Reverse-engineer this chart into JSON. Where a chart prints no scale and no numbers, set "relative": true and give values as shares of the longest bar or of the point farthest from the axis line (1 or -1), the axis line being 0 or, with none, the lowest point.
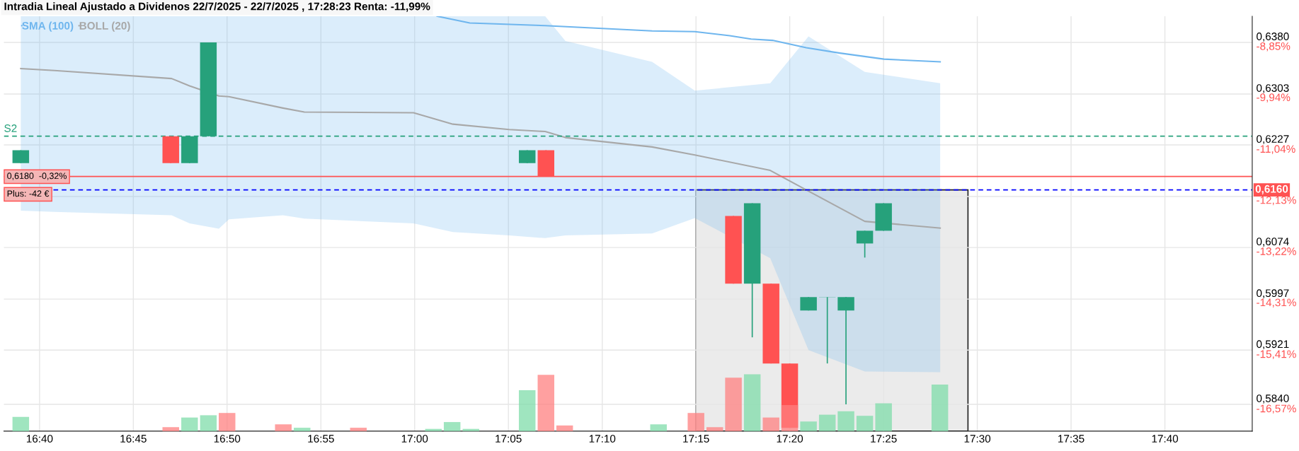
{
  "chart_data": [
    {
      "type": "candlestick",
      "title": "Intradia Lineal Ajustado a Dividenos 22/7/2025 - 22/7/2025 , 17:28:23 Renta: -11,99%",
      "x": [
        16.65,
        16.7833,
        16.8,
        16.8167,
        17.1,
        17.1167,
        17.2833,
        17.3,
        17.3167,
        17.3333,
        17.35,
        17.3667,
        17.3833,
        17.4,
        17.4167
      ],
      "ohlc": [
        [
          0.62,
          0.6219,
          0.62,
          0.6219
        ],
        [
          0.624,
          0.624,
          0.62,
          0.62
        ],
        [
          0.62,
          0.624,
          0.62,
          0.624
        ],
        [
          0.624,
          0.638,
          0.624,
          0.638
        ],
        [
          0.62,
          0.6219,
          0.62,
          0.6219
        ],
        [
          0.6219,
          0.6219,
          0.618,
          0.618
        ],
        [
          0.6121,
          0.6121,
          0.602,
          0.602
        ],
        [
          0.602,
          0.614,
          0.594,
          0.614
        ],
        [
          0.602,
          0.602,
          0.5901,
          0.5901
        ],
        [
          0.5901,
          0.5901,
          0.5805,
          0.5805
        ],
        [
          0.598,
          0.6,
          0.598,
          0.6
        ],
        [
          0.6,
          0.6,
          0.5901,
          0.6
        ],
        [
          0.598,
          0.6,
          0.584,
          0.6
        ],
        [
          0.608,
          0.6099,
          0.6059,
          0.6099
        ],
        [
          0.6099,
          0.614,
          0.6099,
          0.614
        ]
      ],
      "colors": [
        "#26a17b",
        "#ff5252",
        "#26a17b",
        "#26a17b",
        "#26a17b",
        "#ff5252",
        "#ff5252",
        "#26a17b",
        "#ff5252",
        "#ff5252",
        "#26a17b",
        "#26a17b",
        "#26a17b",
        "#26a17b",
        "#26a17b"
      ],
      "series": [
        {
          "type": "line",
          "name": "SMA (100)",
          "color": "#6fb6ee",
          "x": [
            17.02,
            17.049,
            17.116,
            17.211,
            17.249,
            17.28,
            17.299,
            17.318,
            17.348,
            17.378,
            17.417,
            17.467
          ],
          "values": [
            0.6419,
            0.6409,
            0.6405,
            0.6397,
            0.6396,
            0.639,
            0.6385,
            0.6383,
            0.6372,
            0.6364,
            0.6355,
            0.6351
          ]
        },
        {
          "type": "line",
          "name": "BOLL (20)",
          "color": "#a8a8a8",
          "x": [
            16.65,
            16.68,
            16.784,
            16.8,
            16.826,
            16.835,
            16.883,
            16.902,
            16.999,
            17.034,
            17.084,
            17.116,
            17.134,
            17.211,
            17.249,
            17.316,
            17.35,
            17.4,
            17.467
          ],
          "values": [
            0.6341,
            0.6338,
            0.6326,
            0.6315,
            0.63,
            0.6299,
            0.6282,
            0.6276,
            0.6275,
            0.6258,
            0.625,
            0.6247,
            0.6238,
            0.6224,
            0.6212,
            0.6189,
            0.6158,
            0.6113,
            0.6103
          ],
          "upper": [
            0.6419,
            0.6419,
            0.6419,
            0.6419,
            0.6419,
            0.6419,
            0.6419,
            0.6419,
            0.6419,
            0.6419,
            0.6419,
            0.6419,
            0.6382,
            0.6351,
            0.6308,
            0.6319,
            0.6389,
            0.6336,
            0.6319
          ],
          "lower": [
            0.6129,
            0.6127,
            0.6122,
            0.611,
            0.6102,
            0.6116,
            0.6122,
            0.6117,
            0.611,
            0.6097,
            0.6092,
            0.6088,
            0.6092,
            0.6095,
            0.6118,
            0.6058,
            0.5921,
            0.5889,
            0.5888
          ]
        }
      ],
      "xlim": [
        16.635,
        17.7443
      ],
      "xticks": [
        {
          "value": 16.6667,
          "label": "16:40"
        },
        {
          "value": 16.75,
          "label": "16:45"
        },
        {
          "value": 16.8333,
          "label": "16:50"
        },
        {
          "value": 16.9167,
          "label": "16:55"
        },
        {
          "value": 17.0,
          "label": "17:00"
        },
        {
          "value": 17.0833,
          "label": "17:05"
        },
        {
          "value": 17.1667,
          "label": "17:10"
        },
        {
          "value": 17.25,
          "label": "17:15"
        },
        {
          "value": 17.3333,
          "label": "17:20"
        },
        {
          "value": 17.4167,
          "label": "17:25"
        },
        {
          "value": 17.5,
          "label": "17:30"
        },
        {
          "value": 17.5833,
          "label": "17:35"
        },
        {
          "value": 17.6667,
          "label": "17:40"
        }
      ],
      "ylim": [
        0.58,
        0.6419
      ],
      "yticks": [
        {
          "value": 0.638,
          "label": "0,6380"
        },
        {
          "value": 0.6303,
          "label": "0,6303"
        },
        {
          "value": 0.6227,
          "label": "0,6227"
        },
        {
          "value": 0.615,
          "label": null
        },
        {
          "value": 0.6074,
          "label": "0,6074"
        },
        {
          "value": 0.5997,
          "label": "0,5997"
        },
        {
          "value": 0.5921,
          "label": "0,5921"
        },
        {
          "value": 0.584,
          "label": "0,5840"
        }
      ],
      "y2lim": [
        -17.14,
        -8.3
      ],
      "y2ticks": [
        {
          "value": -8.85,
          "label": "-8,85%"
        },
        {
          "value": -9.94,
          "label": "-9,94%"
        },
        {
          "value": -11.04,
          "label": "-11,04%"
        },
        {
          "value": -12.13,
          "label": "-12,13%"
        },
        {
          "value": -13.22,
          "label": "-13,22%"
        },
        {
          "value": -14.31,
          "label": "-14,31%"
        },
        {
          "value": -15.41,
          "label": "-15,41%"
        },
        {
          "value": -16.57,
          "label": "-16,57%"
        }
      ],
      "ref_lines": [
        {
          "axis": "y",
          "value": 0.624,
          "label": "S2",
          "color": "#26a17b",
          "line_style": "dashed"
        },
        {
          "axis": "y",
          "value": 0.618,
          "label": "0,6180  -0,32%",
          "color": "#ff5252",
          "line_style": "solid"
        },
        {
          "axis": "y",
          "value": 0.616,
          "label": "0,6160",
          "color": "#0000ff",
          "line_style": "dashed"
        }
      ],
      "bands": [
        {
          "axis": "x",
          "from": 17.25,
          "to": 17.4917,
          "color": "#ebebeb"
        }
      ],
      "annotations": [
        "Plus: -42 €"
      ],
      "grid": true,
      "legend": "top left"
    },
    {
      "type": "bar",
      "relative": true,
      "tick_labels": false,
      "xlim": [
        16.635,
        17.7443
      ],
      "x": [
        16.65,
        16.7833,
        16.8,
        16.8167,
        16.8333,
        16.8833,
        16.9,
        16.95,
        17.0167,
        17.0333,
        17.05,
        17.1,
        17.1167,
        17.1333,
        17.2167,
        17.25,
        17.2667,
        17.2833,
        17.3,
        17.3167,
        17.3333,
        17.35,
        17.3667,
        17.3833,
        17.4,
        17.4167,
        17.4667
      ],
      "values": [
        0.25,
        0.07,
        0.24,
        0.28,
        0.32,
        0.12,
        0.06,
        0.06,
        0.04,
        0.16,
        0.04,
        0.72,
        0.99,
        0.1,
        0.12,
        0.32,
        0.07,
        0.94,
        1,
        0.24,
        0.46,
        0.17,
        0.29,
        0.35,
        0.27,
        0.49,
        0.82
      ],
      "colors": [
        "#7fdcaa",
        "#ff8080",
        "#7fdcaa",
        "#7fdcaa",
        "#ff8080",
        "#ff8080",
        "#7fdcaa",
        "#ff8080",
        "#7fdcaa",
        "#7fdcaa",
        "#7fdcaa",
        "#7fdcaa",
        "#ff8080",
        "#ff8080",
        "#7fdcaa",
        "#ff8080",
        "#ff8080",
        "#ff8080",
        "#7fdcaa",
        "#ff8080",
        "#ff8080",
        "#7fdcaa",
        "#7fdcaa",
        "#7fdcaa",
        "#7fdcaa",
        "#7fdcaa",
        "#7fdcaa"
      ]
    }
  ]
}
